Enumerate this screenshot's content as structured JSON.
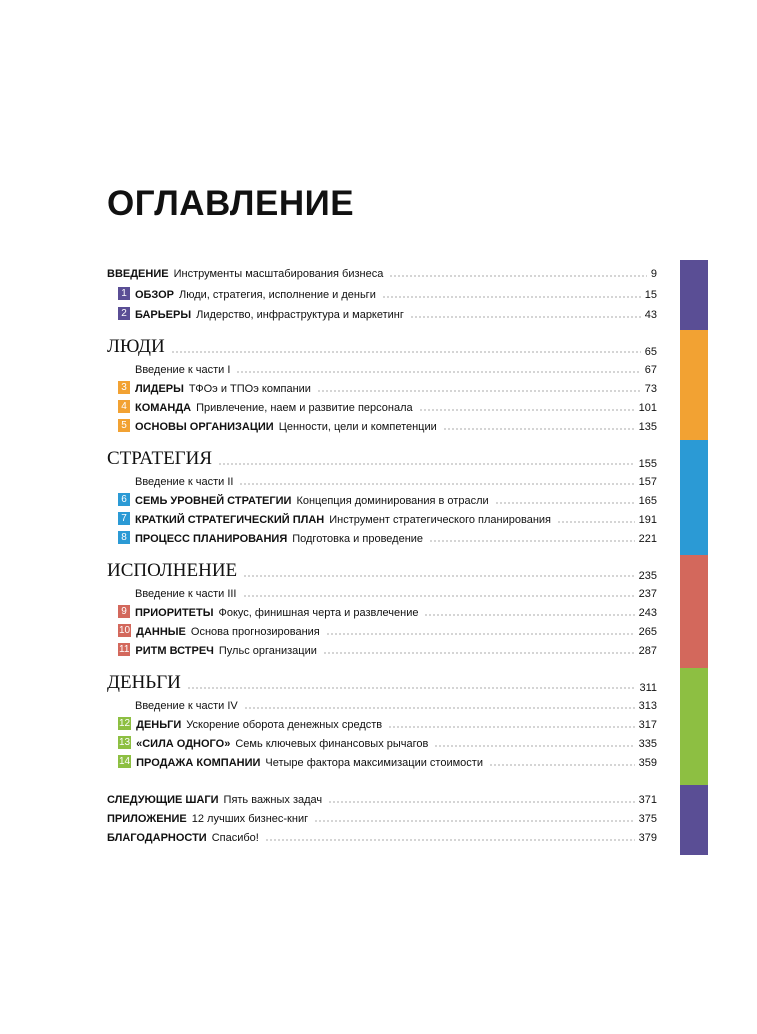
{
  "toc": {
    "title": "ОГЛАВЛЕНИЕ",
    "sections": [
      {
        "entries": [
          {
            "label": "ВВЕДЕНИЕ",
            "text": "Инструменты масштабирования бизнеса",
            "page": "9"
          },
          {
            "num": "1",
            "label": "ОБЗОР",
            "text": "Люди, стратегия, исполнение и деньги",
            "page": "15"
          },
          {
            "num": "2",
            "label": "БАРЬЕРЫ",
            "text": "Лидерство, инфраструктура и маркетинг",
            "page": "43"
          }
        ]
      },
      {
        "heading": "ЛЮДИ",
        "page": "65",
        "entries": [
          {
            "text": "Введение к части I",
            "page": "67"
          },
          {
            "num": "3",
            "label": "ЛИДЕРЫ",
            "text": "ТФОэ и ТПОэ компании",
            "page": "73"
          },
          {
            "num": "4",
            "label": "КОМАНДА",
            "text": "Привлечение, наем и развитие персонала",
            "page": "101"
          },
          {
            "num": "5",
            "label": "ОСНОВЫ ОРГАНИЗАЦИИ",
            "text": "Ценности, цели и компетенции",
            "page": "135"
          }
        ]
      },
      {
        "heading": "СТРАТЕГИЯ",
        "page": "155",
        "entries": [
          {
            "text": "Введение к части II",
            "page": "157"
          },
          {
            "num": "6",
            "label": "СЕМЬ УРОВНЕЙ СТРАТЕГИИ",
            "text": "Концепция доминирования в отрасли",
            "page": "165"
          },
          {
            "num": "7",
            "label": "КРАТКИЙ СТРАТЕГИЧЕСКИЙ ПЛАН",
            "text": "Инструмент стратегического планирования",
            "page": "191"
          },
          {
            "num": "8",
            "label": "ПРОЦЕСС ПЛАНИРОВАНИЯ",
            "text": "Подготовка и проведение",
            "page": "221"
          }
        ]
      },
      {
        "heading": "ИСПОЛНЕНИЕ",
        "page": "235",
        "entries": [
          {
            "text": "Введение к части III",
            "page": "237"
          },
          {
            "num": "9",
            "label": "ПРИОРИТЕТЫ",
            "text": "Фокус, финишная черта и развлечение",
            "page": "243"
          },
          {
            "num": "10",
            "label": "ДАННЫЕ",
            "text": "Основа прогнозирования",
            "page": "265"
          },
          {
            "num": "11",
            "label": "РИТМ ВСТРЕЧ",
            "text": "Пульс организации",
            "page": "287"
          }
        ]
      },
      {
        "heading": "ДЕНЬГИ",
        "page": "311",
        "entries": [
          {
            "text": "Введение к части IV",
            "page": "313"
          },
          {
            "num": "12",
            "label": "ДЕНЬГИ",
            "text": "Ускорение оборота денежных средств",
            "page": "317"
          },
          {
            "num": "13",
            "label": "«СИЛА ОДНОГО»",
            "text": "Семь ключевых финансовых рычагов",
            "page": "335"
          },
          {
            "num": "14",
            "label": "ПРОДАЖА КОМПАНИИ",
            "text": "Четыре фактора максимизации стоимости",
            "page": "359"
          }
        ]
      },
      {
        "entries": [
          {
            "label": "СЛЕДУЮЩИЕ ШАГИ",
            "text": "Пять важных задач",
            "page": "371"
          },
          {
            "label": "ПРИЛОЖЕНИЕ",
            "text": "12 лучших бизнес-книг",
            "page": "375"
          },
          {
            "label": "БЛАГОДАРНОСТИ",
            "text": "Спасибо!",
            "page": "379"
          }
        ]
      }
    ]
  }
}
